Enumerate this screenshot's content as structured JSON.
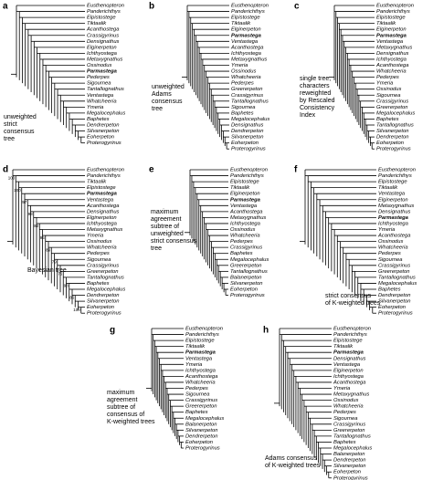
{
  "panels": [
    {
      "letter": "a",
      "caption": [
        "unweighted",
        "strict",
        "consensus",
        "tree"
      ],
      "taxa": [
        "Eusthenopteron",
        "Panderichthys",
        "Elpistostege",
        "Tiktaalik",
        "Acanthostega",
        "Crassigyrinus",
        "Densignathus",
        "Elginerpeton",
        "Ichthyostega",
        "Metaxygnathus",
        "Ossinodus",
        {
          "name": "Parmastega",
          "bold": true
        },
        "Pederpes",
        "Sigournea",
        "Tantallognathus",
        "Ventastega",
        "Whatcheeria",
        "Ymeria",
        "Megalocephalus",
        "Baphetes",
        "Dendrerpeton",
        "Silvanerpeton",
        "Eoherpeton",
        "Proterogyrinus"
      ]
    },
    {
      "letter": "b",
      "caption": [
        "unweighted",
        "Adams",
        "consensus",
        "tree"
      ],
      "taxa": [
        "Eusthenopteron",
        "Panderichthys",
        "Elpistostege",
        "Tiktaalik",
        "Elginerpeton",
        {
          "name": "Parmastega",
          "bold": true
        },
        "Ventastega",
        "Acanthostega",
        "Ichthyostega",
        "Metaxygnathus",
        "Ymeria",
        "Ossinodus",
        "Whatcheeria",
        "Pederpes",
        "Greererpeton",
        "Crassigyrinus",
        "Tantallognathus",
        "Sigournea",
        "Baphetes",
        "Megalocephalus",
        "Densignathus",
        "Dendrerpeton",
        "Silvanerpeton",
        "Eoherpeton",
        "Proterogyrinus"
      ]
    },
    {
      "letter": "c",
      "caption": [
        "single tree,",
        "characters",
        "reweighted",
        "by Rescaled",
        "Consistency",
        "Index"
      ],
      "taxa": [
        "Eusthenopteron",
        "Panderichthys",
        "Elpistostege",
        "Tiktaalik",
        "Elginerpeton",
        {
          "name": "Parmastega",
          "bold": true
        },
        "Ventastega",
        "Metaxygnathus",
        "Densignathus",
        "Ichthyostega",
        "Acanthostega",
        "Whatcheeria",
        "Pederpes",
        "Ymeria",
        "Ossinodus",
        "Sigournea",
        "Crassigyrinus",
        "Greererpeton",
        "Megalocephalus",
        "Baphetes",
        "Tantallognathus",
        "Silvanerpeton",
        "Dendrerpeton",
        "Eoherpeton",
        "Proterogyrinus"
      ]
    },
    {
      "letter": "d",
      "caption": [
        "Bayesian tree"
      ],
      "taxa": [
        "Eusthenopteron",
        "Panderichthys",
        "Tiktaalik",
        "Elpistostege",
        {
          "name": "Parmastega",
          "bold": true
        },
        "Ventastega",
        "Acanthostega",
        "Densignathus",
        "Elginerpeton",
        "Ichthyostega",
        "Metaxygnathus",
        "Ymeria",
        "Ossinodus",
        "Whatcheeria",
        "Pederpes",
        "Sigournea",
        "Crassigyrinus",
        "Greererpeton",
        "Tantallognathus",
        "Baphetes",
        "Megalocephalus",
        "Dendrerpeton",
        "Silvanerpeton",
        "Eoherpeton",
        "Proterogyrinus"
      ],
      "support": [
        100,
        100,
        97,
        98,
        82,
        95,
        89,
        79,
        76,
        98,
        86,
        100
      ]
    },
    {
      "letter": "e",
      "caption": [
        "maximum",
        "agreement",
        "subtree of",
        "unweighted",
        "strict consensus",
        "tree"
      ],
      "taxa": [
        "Eusthenopteron",
        "Panderichthys",
        "Elpistostege",
        "Tiktaalik",
        "Elginerpeton",
        {
          "name": "Parmastega",
          "bold": true
        },
        "Ventastega",
        "Acanthostega",
        "Metaxygnathus",
        "Ichthyostega",
        "Ossinodus",
        "Whatcheeria",
        "Pederpes",
        "Crassigyrinus",
        "Baphetes",
        "Megalocephalus",
        "Greererpeton",
        "Tantallognathus",
        "Balanerpeton",
        "Silvanerpeton",
        "Eoherpeton",
        "Proterogyrinus"
      ]
    },
    {
      "letter": "f",
      "caption": [
        "strict consensus",
        "of K-weighted trees"
      ],
      "taxa": [
        "Eusthenopteron",
        "Panderichthys",
        "Elpistostege",
        "Tiktaalik",
        "Ventastega",
        "Elginerpeton",
        "Metaxygnathus",
        "Densignathus",
        {
          "name": "Parmastega",
          "bold": true
        },
        "Ichthyostega",
        "Ymeria",
        "Acanthostega",
        "Ossinodus",
        "Whatcheeria",
        "Pederpes",
        "Sigournea",
        "Crassigyrinus",
        "Greererpeton",
        "Tantallognathus",
        "Megalocephalus",
        "Baphetes",
        "Dendrerpeton",
        "Silvanerpeton",
        "Eoherpeton",
        "Proterogyrinus"
      ]
    },
    {
      "letter": "g",
      "caption": [
        "maximum",
        "agreement",
        "subtree of",
        "consensus of",
        "K-weighted trees"
      ],
      "taxa": [
        "Eusthenopteron",
        "Panderichthys",
        "Elpistostege",
        "Tiktaalik",
        {
          "name": "Parmastega",
          "bold": true
        },
        "Ventastega",
        "Ymeria",
        "Ichthyostega",
        "Acanthostega",
        "Whatcheeria",
        "Pederpes",
        "Sigournea",
        "Crassigyrinus",
        "Greererpeton",
        "Baphetes",
        "Megalocephalus",
        "Balanerpeton",
        "Silvanerpeton",
        "Dendrerpeton",
        "Eoherpeton",
        "Proterogyrinus"
      ]
    },
    {
      "letter": "h",
      "caption": [
        "Adams consensus",
        "of K-weighted trees"
      ],
      "taxa": [
        "Eusthenopteron",
        "Panderichthys",
        "Elpistostege",
        "Tiktaalik",
        {
          "name": "Parmastega",
          "bold": true
        },
        "Densignathus",
        "Ventastega",
        "Elginerpeton",
        "Ichthyostega",
        "Acanthostega",
        "Ymeria",
        "Metaxygnathus",
        "Ossinodus",
        "Whatcheeria",
        "Pederpes",
        "Sigournea",
        "Crassigyrinus",
        "Greererpeton",
        "Tantallognathus",
        "Baphetes",
        "Megalocephalus",
        "Balanerpeton",
        "Dendrerpeton",
        "Silvanerpeton",
        "Eoherpeton",
        "Proterogyrinus"
      ]
    }
  ]
}
